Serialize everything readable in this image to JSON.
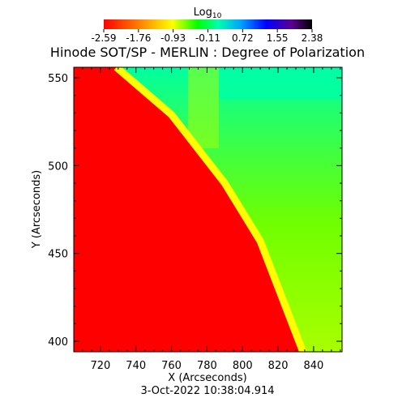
{
  "chart_data": {
    "type": "heatmap",
    "title": "Hinode SOT/SP - MERLIN : Degree of Polarization",
    "colorbar": {
      "label_base": "Log",
      "label_sub": "10",
      "ticks": [
        "-2.59",
        "-1.76",
        "-0.93",
        "-0.11",
        "0.72",
        "1.55",
        "2.38"
      ],
      "range": [
        -2.59,
        2.38
      ]
    },
    "xlabel": "X (Arcseconds)",
    "ylabel": "Y (Arcseconds)",
    "xlim": [
      705,
      856
    ],
    "ylim": [
      394,
      556
    ],
    "x_ticks": [
      720,
      740,
      760,
      780,
      800,
      820,
      840
    ],
    "y_ticks": [
      400,
      450,
      500,
      550
    ],
    "limb_boundary": [
      [
        729,
        556
      ],
      [
        760,
        529
      ],
      [
        790,
        490
      ],
      [
        810,
        457
      ],
      [
        834,
        394
      ]
    ],
    "regions": [
      {
        "name": "disk",
        "side": "left of limb",
        "log10_value": -2.59,
        "color": "#ff0000"
      },
      {
        "name": "limb edge",
        "side": "at limb",
        "log10_value": -1.6,
        "color": "#ffff00"
      },
      {
        "name": "off-limb",
        "side": "right of limb",
        "log10_value": -1.1,
        "color": "#8cff00"
      },
      {
        "name": "upper off-limb",
        "side": "top right",
        "log10_value": -0.8,
        "color": "#00ffb0"
      }
    ],
    "grid": false
  },
  "footer": {
    "timestamp": "3-Oct-2022 10:38:04.914"
  }
}
